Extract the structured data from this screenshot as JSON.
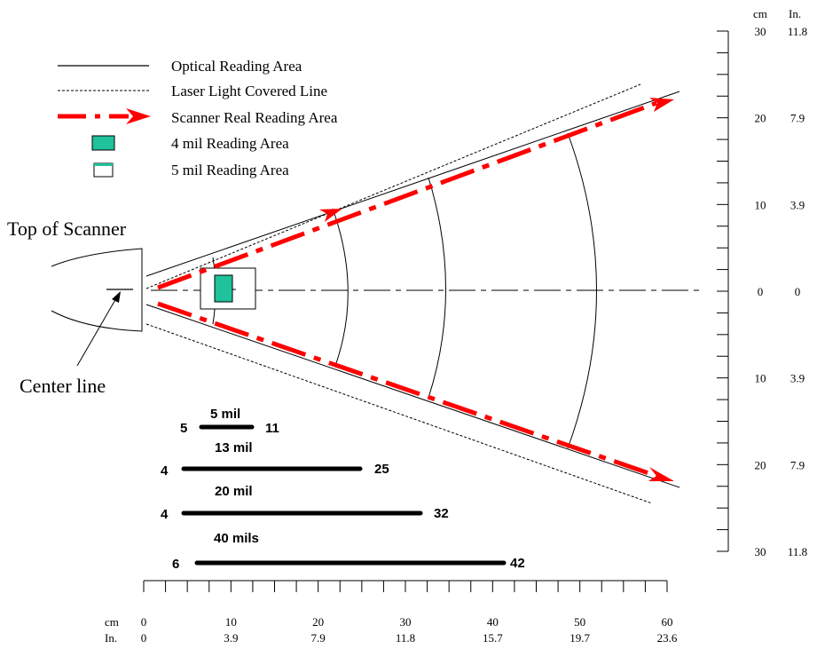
{
  "legend": {
    "optical": "Optical Reading Area",
    "laser": "Laser Light Covered Line",
    "scanner_real": "Scanner Real Reading Area",
    "mil4": "4 mil Reading Area",
    "mil5": "5 mil Reading Area"
  },
  "labels": {
    "top_of_scanner": "Top of Scanner",
    "center_line": "Center line"
  },
  "ranges": [
    {
      "title": "5 mil",
      "min": "5",
      "max": "11"
    },
    {
      "title": "13 mil",
      "min": "4",
      "max": "25"
    },
    {
      "title": "20 mil",
      "min": "4",
      "max": "32"
    },
    {
      "title": "40 mils",
      "min": "6",
      "max": "42"
    }
  ],
  "ruler_bottom": {
    "unit_cm": "cm",
    "unit_in": "In.",
    "cm": [
      "0",
      "10",
      "20",
      "30",
      "40",
      "50",
      "60"
    ],
    "in": [
      "0",
      "3.9",
      "7.9",
      "11.8",
      "15.7",
      "19.7",
      "23.6"
    ]
  },
  "ruler_right": {
    "unit_cm": "cm",
    "unit_in": "In.",
    "cm": [
      "30",
      "20",
      "10",
      "0",
      "10",
      "20",
      "30"
    ],
    "in": [
      "11.8",
      "7.9",
      "3.9",
      "0",
      "3.9",
      "7.9",
      "11.8"
    ]
  },
  "colors": {
    "scan_red": "#ff0000",
    "mil4_fill": "#1fc29a",
    "line": "#000000"
  }
}
